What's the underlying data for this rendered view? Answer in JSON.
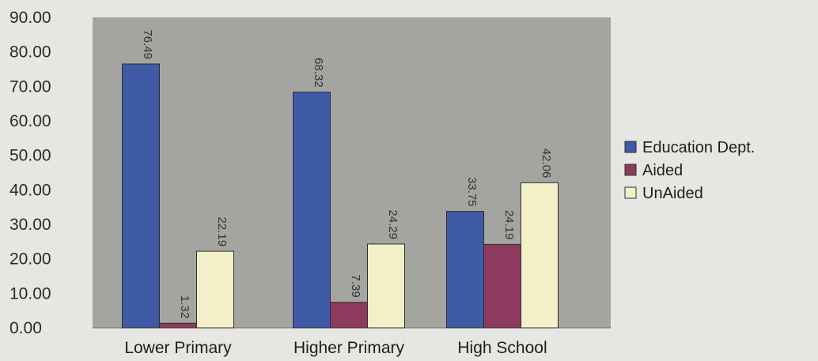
{
  "chart_data": {
    "type": "bar",
    "title": "",
    "xlabel": "",
    "ylabel": "",
    "categories": [
      "Lower Primary",
      "Higher Primary",
      "High School"
    ],
    "series": [
      {
        "name": "Education Dept.",
        "color": "#3f5aa6",
        "values": [
          76.49,
          68.32,
          33.75
        ]
      },
      {
        "name": "Aided",
        "color": "#8e3a5e",
        "values": [
          1.32,
          7.39,
          24.19
        ]
      },
      {
        "name": "UnAided",
        "color": "#f3efc8",
        "values": [
          22.19,
          24.29,
          42.06
        ]
      }
    ],
    "data_labels": [
      [
        "76.49",
        "1.32",
        "22.19"
      ],
      [
        "68.32",
        "7.39",
        "24.29"
      ],
      [
        "33.75",
        "24.19",
        "42.06"
      ]
    ],
    "yticks": [
      "0.00",
      "10.00",
      "20.00",
      "30.00",
      "40.00",
      "50.00",
      "60.00",
      "70.00",
      "80.00",
      "90.00"
    ],
    "ylim": [
      0,
      90
    ],
    "plot_background": "#a4a4a1",
    "grid": false,
    "legend_position": "right"
  }
}
